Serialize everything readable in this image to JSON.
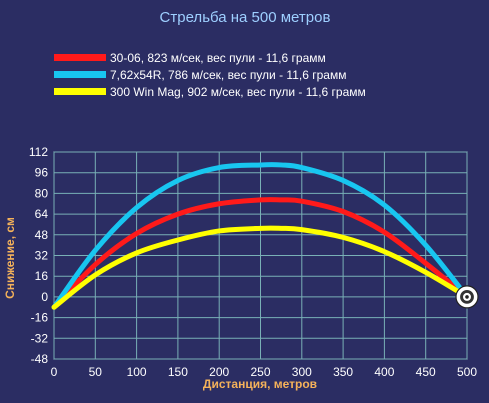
{
  "chart_data": {
    "type": "line",
    "title": "Стрельба на 500 метров",
    "xlabel": "Дистанция, метров",
    "ylabel": "Снижение, см",
    "xlim": [
      0,
      500
    ],
    "ylim": [
      -48,
      112
    ],
    "x_ticks": [
      0,
      50,
      100,
      150,
      200,
      250,
      300,
      350,
      400,
      450,
      500
    ],
    "y_ticks": [
      112,
      96,
      80,
      64,
      48,
      32,
      16,
      0,
      -16,
      -32,
      -48
    ],
    "grid": true,
    "legend_position": "top-left",
    "x": [
      0,
      50,
      100,
      150,
      200,
      250,
      275,
      300,
      350,
      400,
      450,
      500
    ],
    "series": [
      {
        "name": "30-06, 823 м/сек, вес пули - 11,6 грамм",
        "color": "#ff1a1a",
        "values": [
          -8,
          25,
          49,
          64,
          72,
          75,
          75,
          74,
          66,
          50,
          26,
          0
        ]
      },
      {
        "name": "7,62x54R, 786 м/сек, вес пули - 11,6 грамм",
        "color": "#18c6f0",
        "values": [
          -8,
          36,
          69,
          90,
          100,
          102,
          102,
          100,
          90,
          71,
          40,
          0
        ]
      },
      {
        "name": "300 Win Mag, 902 м/сек, вес пули - 11,6 грамм",
        "color": "#ffff00",
        "values": [
          -8,
          17,
          34,
          44,
          51,
          53,
          53,
          52,
          46,
          35,
          19,
          0
        ]
      }
    ]
  },
  "decor": {
    "grid_color": "#79b0b6",
    "axis_line_color": "#b8dde2",
    "title_color": "#9ecfff",
    "axis_title_color": "#f5b25a",
    "target": "target-icon"
  }
}
